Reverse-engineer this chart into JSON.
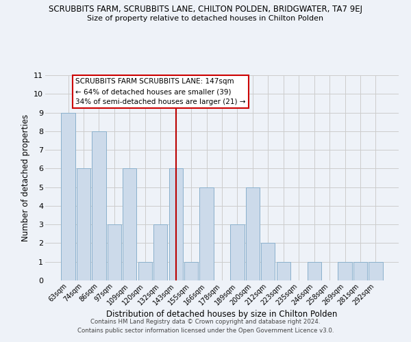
{
  "title": "SCRUBBITS FARM, SCRUBBITS LANE, CHILTON POLDEN, BRIDGWATER, TA7 9EJ",
  "subtitle": "Size of property relative to detached houses in Chilton Polden",
  "xlabel": "Distribution of detached houses by size in Chilton Polden",
  "ylabel": "Number of detached properties",
  "categories": [
    "63sqm",
    "74sqm",
    "86sqm",
    "97sqm",
    "109sqm",
    "120sqm",
    "132sqm",
    "143sqm",
    "155sqm",
    "166sqm",
    "178sqm",
    "189sqm",
    "200sqm",
    "212sqm",
    "223sqm",
    "235sqm",
    "246sqm",
    "258sqm",
    "269sqm",
    "281sqm",
    "292sqm"
  ],
  "values": [
    9,
    6,
    8,
    3,
    6,
    1,
    3,
    6,
    1,
    5,
    0,
    3,
    5,
    2,
    1,
    0,
    1,
    0,
    1,
    1,
    1
  ],
  "bar_color": "#ccdaea",
  "bar_edge_color": "#8ab0cc",
  "highlight_index": 7,
  "highlight_line_color": "#bb0000",
  "ylim": [
    0,
    11
  ],
  "yticks": [
    0,
    1,
    2,
    3,
    4,
    5,
    6,
    7,
    8,
    9,
    10,
    11
  ],
  "grid_color": "#cccccc",
  "background_color": "#eef2f8",
  "annotation_title": "SCRUBBITS FARM SCRUBBITS LANE: 147sqm",
  "annotation_line1": "← 64% of detached houses are smaller (39)",
  "annotation_line2": "34% of semi-detached houses are larger (21) →",
  "annotation_box_color": "#ffffff",
  "annotation_box_edge": "#cc0000",
  "footer1": "Contains HM Land Registry data © Crown copyright and database right 2024.",
  "footer2": "Contains public sector information licensed under the Open Government Licence v3.0."
}
